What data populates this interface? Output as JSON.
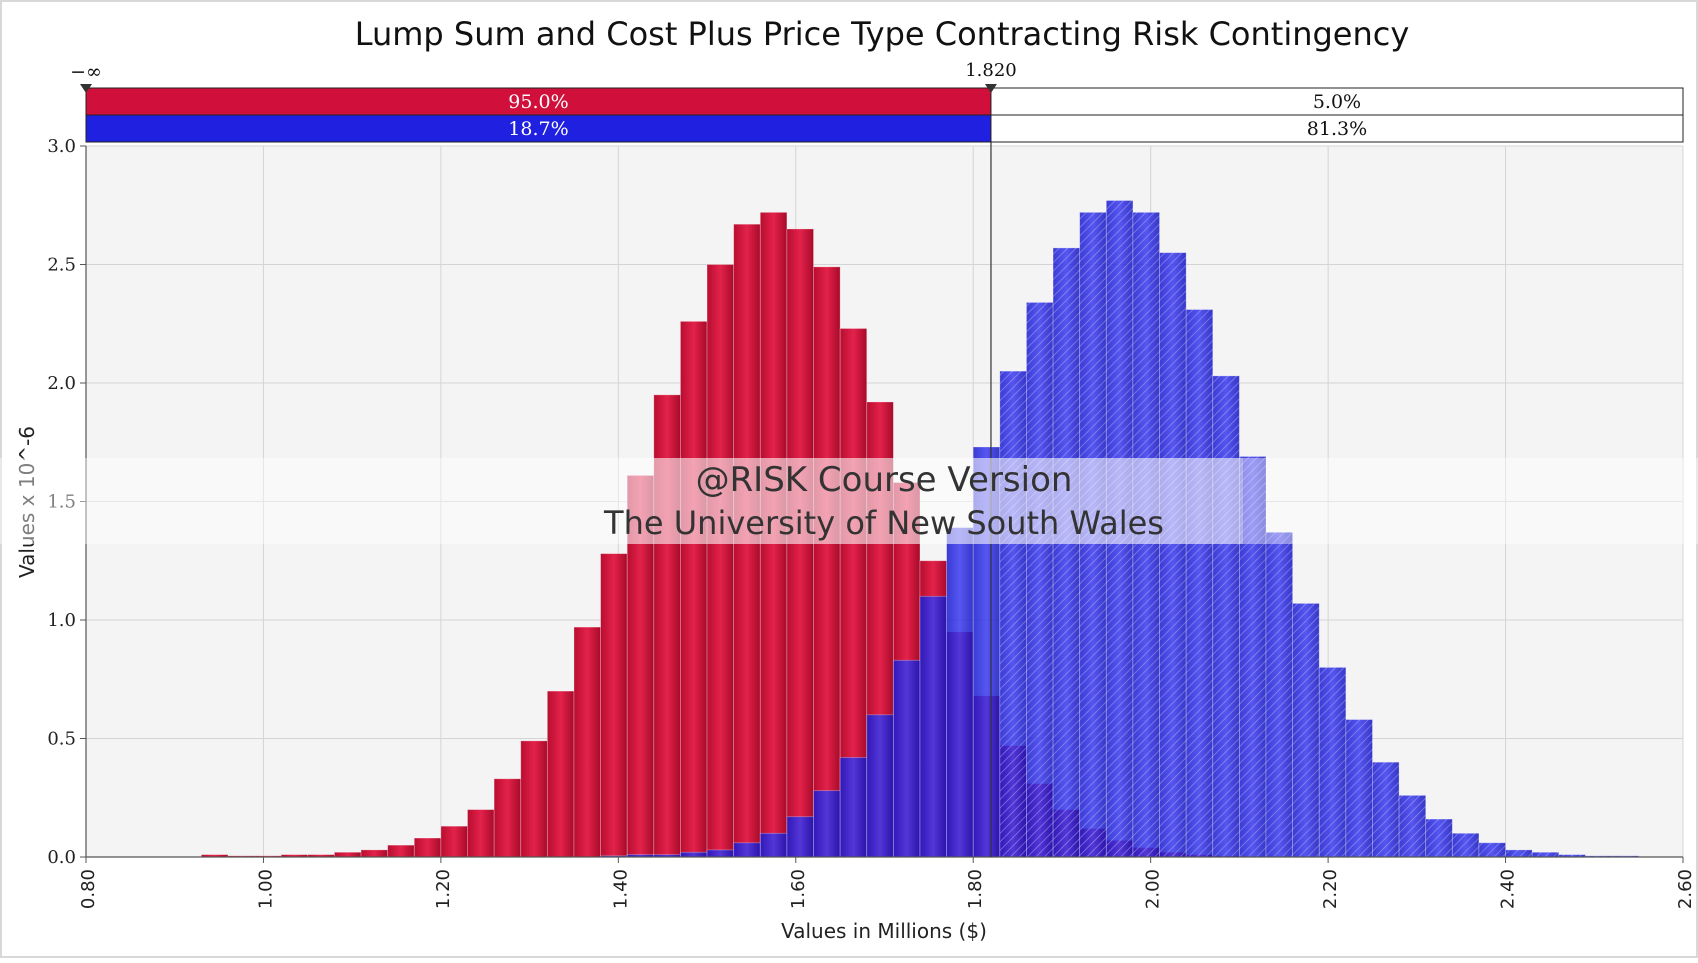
{
  "chart_data": {
    "type": "bar",
    "title": "Lump Sum and Cost Plus Price Type Contracting Risk Contingency",
    "xlabel": "Values in Millions ($)",
    "ylabel": "Values x 10^-6",
    "xlim": [
      0.8,
      2.6
    ],
    "ylim": [
      0.0,
      3.0
    ],
    "x_ticks": [
      0.8,
      1.0,
      1.2,
      1.4,
      1.6,
      1.8,
      2.0,
      2.2,
      2.4,
      2.6
    ],
    "x_tick_labels": [
      "0.80",
      "1.00",
      "1.20",
      "1.40",
      "1.60",
      "1.80",
      "2.00",
      "2.20",
      "2.40",
      "2.60"
    ],
    "y_ticks": [
      0.0,
      0.5,
      1.0,
      1.5,
      2.0,
      2.5,
      3.0
    ],
    "y_tick_labels": [
      "0.0",
      "0.5",
      "1.0",
      "1.5",
      "2.0",
      "2.5",
      "3.0"
    ],
    "grid": true,
    "bin_width": 0.03,
    "series": [
      {
        "name": "Lump Sum",
        "color": "#d0103a",
        "bin_start": 0.93,
        "values": [
          0.01,
          0.005,
          0.005,
          0.01,
          0.01,
          0.02,
          0.03,
          0.05,
          0.08,
          0.13,
          0.2,
          0.33,
          0.49,
          0.7,
          0.97,
          1.28,
          1.61,
          1.95,
          2.26,
          2.5,
          2.67,
          2.72,
          2.65,
          2.49,
          2.23,
          1.92,
          1.58,
          1.25,
          0.95,
          0.68,
          0.47,
          0.31,
          0.2,
          0.12,
          0.07,
          0.04,
          0.02,
          0.01,
          0.005
        ]
      },
      {
        "name": "Cost Plus",
        "color": "#2020e0",
        "bin_start": 1.38,
        "values": [
          0.005,
          0.01,
          0.01,
          0.02,
          0.03,
          0.06,
          0.1,
          0.17,
          0.28,
          0.42,
          0.6,
          0.83,
          1.1,
          1.39,
          1.73,
          2.05,
          2.34,
          2.57,
          2.72,
          2.77,
          2.72,
          2.55,
          2.31,
          2.03,
          1.69,
          1.37,
          1.07,
          0.8,
          0.58,
          0.4,
          0.26,
          0.16,
          0.1,
          0.06,
          0.03,
          0.02,
          0.01,
          0.005,
          0.005
        ]
      }
    ],
    "delimiter": {
      "left_label": "−∞",
      "right_label": "1.820",
      "value": 1.82
    },
    "probability_bars": [
      {
        "series": "Lump Sum",
        "color": "#d0103a",
        "left_label": "95.0%",
        "right_label": "5.0%"
      },
      {
        "series": "Cost Plus",
        "color": "#2020e0",
        "left_label": "18.7%",
        "right_label": "81.3%"
      }
    ],
    "watermark": {
      "line1": "@RISK Course Version",
      "line2": "The University of New South Wales"
    }
  }
}
